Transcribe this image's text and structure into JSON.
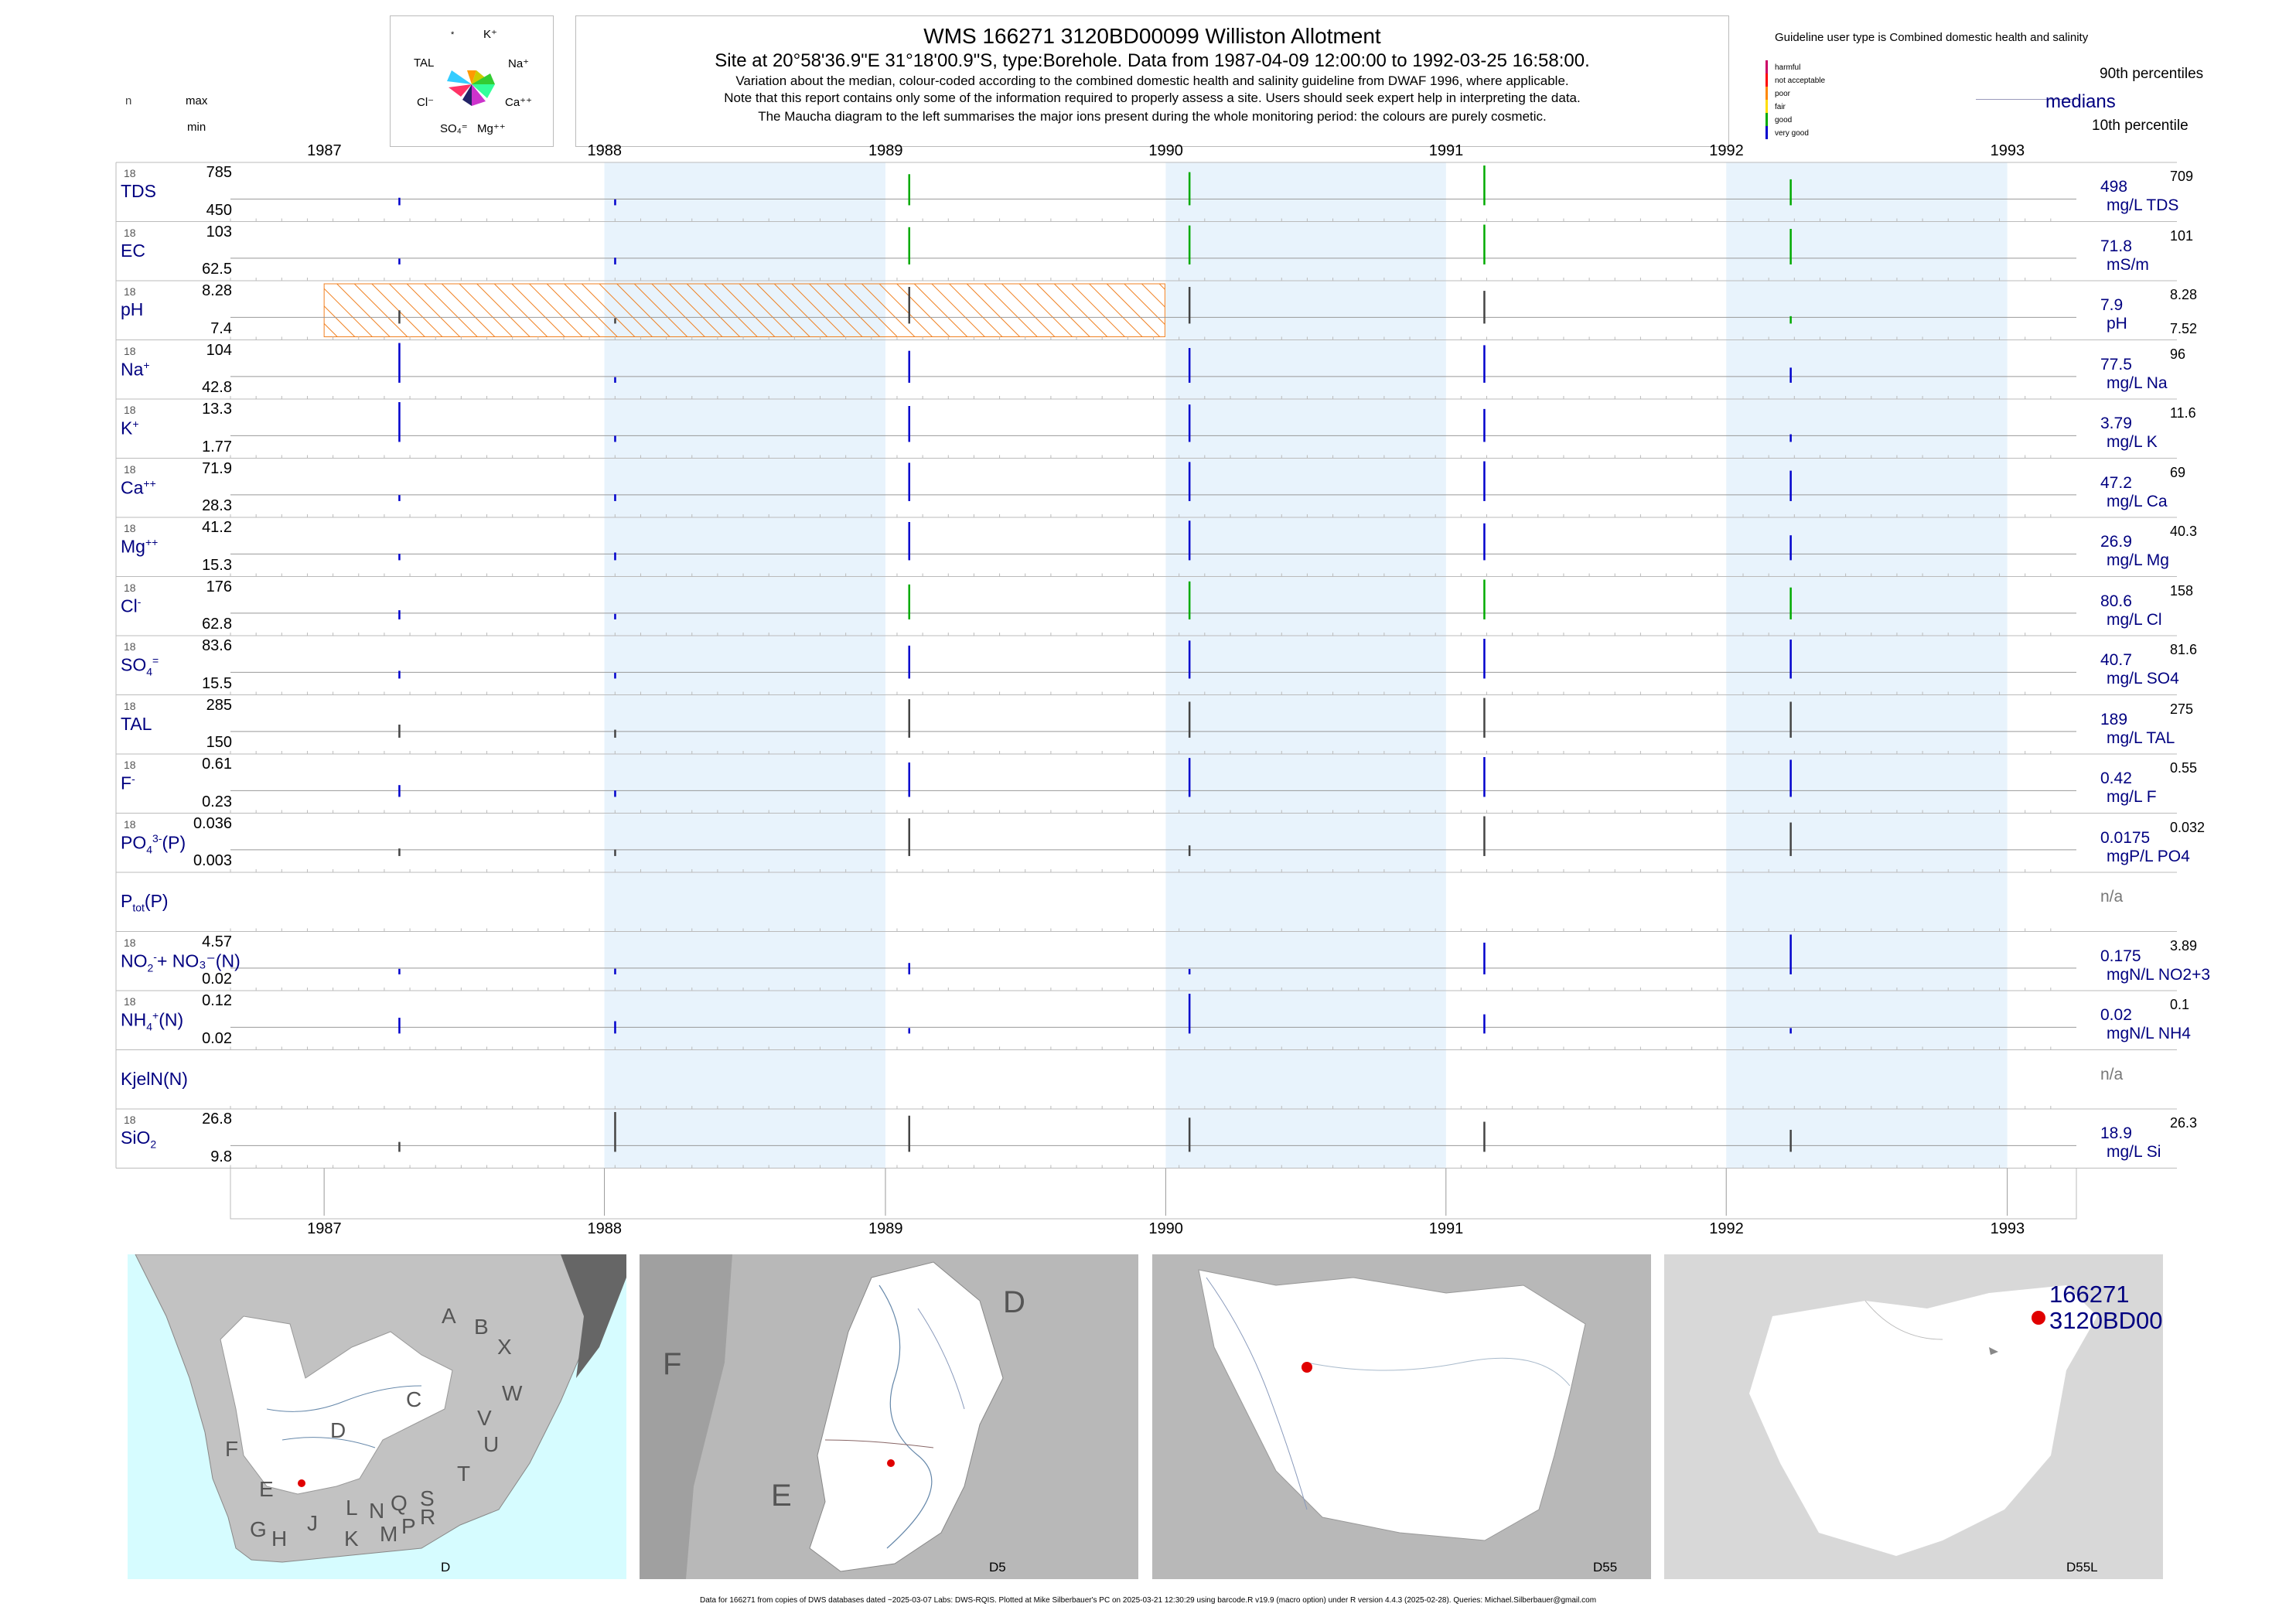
{
  "header": {
    "title": "WMS 166271 3120BD00099 Williston Allotment",
    "subtitle": "Site at 20°58'36.9\"E 31°18'00.9\"S, type:Borehole.  Data from 1987-04-09 12:00:00 to 1992-03-25 16:58:00.",
    "note1": "Variation about the median,  colour-coded according to the combined domestic health and salinity guideline from DWAF 1996, where applicable.",
    "note2": "Note that this report contains only some of the information required to properly assess a site. Users should seek expert help in interpreting the data.",
    "note3": "The Maucha diagram to the left summarises the major ions present during the whole monitoring period: the colours are purely cosmetic."
  },
  "maucha": {
    "labels": [
      "*",
      "K⁺",
      "TAL",
      "Na⁺",
      "Cl⁻",
      "Ca⁺⁺",
      "SO₄⁼",
      "Mg⁺⁺"
    ]
  },
  "left_header": {
    "n": "n",
    "max": "max",
    "min": "min"
  },
  "legend": {
    "title": "Guideline user type is Combined domestic health and salinity",
    "classes": [
      {
        "label": "harmful",
        "color": "#cc0066"
      },
      {
        "label": "not acceptable",
        "color": "#ff0000"
      },
      {
        "label": "poor",
        "color": "#ff8800"
      },
      {
        "label": "fair",
        "color": "#ffdd00"
      },
      {
        "label": "good",
        "color": "#00aa00"
      },
      {
        "label": "very good",
        "color": "#0000cc"
      }
    ],
    "p90": "90th percentiles",
    "medians": "medians",
    "p10": "10th percentile"
  },
  "footer": "Data for 166271 from copies of DWS databases dated ~2025-03-07 Labs: DWS-RQIS. Plotted at Mike Silberbauer's PC on 2025-03-21 12:30:29 using barcode.R v19.9 (macro option) under R version 4.4.3 (2025-02-28). Queries: Michael.Silberbauer@gmail.com",
  "chart_data": {
    "type": "barcode",
    "x_axis": {
      "ticks": [
        "1987",
        "1988",
        "1989",
        "1990",
        "1991",
        "1992",
        "1993"
      ],
      "range": [
        "1986-09-01",
        "1993-04-01"
      ]
    },
    "shaded_years": [
      "1988",
      "1990",
      "1992"
    ],
    "sample_dates": [
      "1987-04-09",
      "1988-01-15",
      "1989-02-01",
      "1990-02-01",
      "1991-02-20",
      "1992-03-25"
    ],
    "ph_hatched_period": [
      "1987",
      "1989-12-31"
    ],
    "rows": [
      {
        "name": "TDS",
        "sub": "",
        "sup": "",
        "n": "18",
        "max": "785",
        "min": "450",
        "median": "498",
        "p90": "709",
        "p10": "",
        "unit": "mg/L TDS",
        "values": [
          470,
          455,
          700,
          720,
          785,
          650
        ],
        "colors": [
          "#0000cc",
          "#0000cc",
          "#00aa00",
          "#00aa00",
          "#00aa00",
          "#00aa00"
        ]
      },
      {
        "name": "EC",
        "sub": "",
        "sup": "",
        "n": "18",
        "max": "103",
        "min": "62.5",
        "median": "71.8",
        "p90": "101",
        "p10": "",
        "unit": "mS/m",
        "values": [
          63,
          64,
          100,
          102,
          103,
          98
        ],
        "colors": [
          "#0000cc",
          "#0000cc",
          "#00aa00",
          "#00aa00",
          "#00aa00",
          "#00aa00"
        ]
      },
      {
        "name": "pH",
        "sub": "",
        "sup": "",
        "n": "18",
        "max": "8.28",
        "min": "7.4",
        "median": "7.9",
        "p90": "8.28",
        "p10": "7.52",
        "unit": "pH",
        "values": [
          7.6,
          7.4,
          8.2,
          8.2,
          8.1,
          7.45
        ],
        "colors": [
          "#444444",
          "#444444",
          "#444444",
          "#444444",
          "#444444",
          "#00aa00"
        ]
      },
      {
        "name": "Na",
        "sub": "",
        "sup": "+",
        "n": "18",
        "max": "104",
        "min": "42.8",
        "median": "77.5",
        "p90": "96",
        "p10": "",
        "unit": "mg/L Na",
        "values": [
          104,
          43,
          90,
          95,
          100,
          60
        ],
        "colors": [
          "#0000cc",
          "#0000cc",
          "#0000cc",
          "#0000cc",
          "#0000cc",
          "#0000cc"
        ]
      },
      {
        "name": "K",
        "sub": "",
        "sup": "+",
        "n": "18",
        "max": "13.3",
        "min": "1.77",
        "median": "3.79",
        "p90": "11.6",
        "p10": "",
        "unit": "mg/L K",
        "values": [
          13.3,
          2,
          12,
          12.5,
          11,
          2.5
        ],
        "colors": [
          "#0000cc",
          "#0000cc",
          "#0000cc",
          "#0000cc",
          "#0000cc",
          "#0000cc"
        ]
      },
      {
        "name": "Ca",
        "sub": "",
        "sup": "++",
        "n": "18",
        "max": "71.9",
        "min": "28.3",
        "median": "47.2",
        "p90": "69",
        "p10": "",
        "unit": "mg/L Ca",
        "values": [
          29,
          30,
          70,
          71,
          71.9,
          60
        ],
        "colors": [
          "#0000cc",
          "#0000cc",
          "#0000cc",
          "#0000cc",
          "#0000cc",
          "#0000cc"
        ]
      },
      {
        "name": "Mg",
        "sub": "",
        "sup": "++",
        "n": "18",
        "max": "41.2",
        "min": "15.3",
        "median": "26.9",
        "p90": "40.3",
        "p10": "",
        "unit": "mg/L Mg",
        "values": [
          16,
          17,
          40,
          41,
          39,
          30
        ],
        "colors": [
          "#0000cc",
          "#0000cc",
          "#0000cc",
          "#0000cc",
          "#0000cc",
          "#0000cc"
        ]
      },
      {
        "name": "Cl",
        "sub": "",
        "sup": "-",
        "n": "18",
        "max": "176",
        "min": "62.8",
        "median": "80.6",
        "p90": "158",
        "p10": "",
        "unit": "mg/L Cl",
        "values": [
          75,
          63,
          160,
          170,
          176,
          150
        ],
        "colors": [
          "#0000cc",
          "#0000cc",
          "#00aa00",
          "#00aa00",
          "#00aa00",
          "#00aa00"
        ]
      },
      {
        "name": "SO",
        "sub": "4",
        "sup": "=",
        "n": "18",
        "max": "83.6",
        "min": "15.5",
        "median": "40.7",
        "p90": "81.6",
        "p10": "",
        "unit": "mg/L SO4",
        "values": [
          20,
          16,
          70,
          80,
          83.6,
          82
        ],
        "colors": [
          "#0000cc",
          "#0000cc",
          "#0000cc",
          "#0000cc",
          "#0000cc",
          "#0000cc"
        ]
      },
      {
        "name": "TAL",
        "sub": "",
        "sup": "",
        "n": "18",
        "max": "285",
        "min": "150",
        "median": "189",
        "p90": "275",
        "p10": "",
        "unit": "mg/L TAL",
        "values": [
          180,
          160,
          280,
          270,
          285,
          270
        ],
        "colors": [
          "#444444",
          "#444444",
          "#444444",
          "#444444",
          "#444444",
          "#444444"
        ]
      },
      {
        "name": "F",
        "sub": "",
        "sup": "-",
        "n": "18",
        "max": "0.61",
        "min": "0.23",
        "median": "0.42",
        "p90": "0.55",
        "p10": "",
        "unit": "mg/L F",
        "values": [
          0.3,
          0.24,
          0.55,
          0.6,
          0.61,
          0.58
        ],
        "colors": [
          "#0000cc",
          "#0000cc",
          "#0000cc",
          "#0000cc",
          "#0000cc",
          "#0000cc"
        ]
      },
      {
        "name": "PO",
        "sub": "4",
        "sup": "3-",
        "tail": "(P)",
        "n": "18",
        "max": "0.036",
        "min": "0.003",
        "median": "0.0175",
        "p90": "0.032",
        "p10": "",
        "unit": "mgP/L PO4",
        "values": [
          0.005,
          0.004,
          0.034,
          0.008,
          0.036,
          0.03
        ],
        "colors": [
          "#444444",
          "#444444",
          "#444444",
          "#444444",
          "#444444",
          "#444444"
        ]
      },
      {
        "name": "P",
        "sub": "tot",
        "sup": "",
        "tail": "(P)",
        "n": "",
        "max": "",
        "min": "",
        "median": "n/a",
        "p90": "",
        "p10": "",
        "unit": "",
        "values": [],
        "colors": []
      },
      {
        "name": "NO",
        "sub": "2",
        "sup": "-",
        "tail": "+ NO₃⁻(N)",
        "n": "18",
        "max": "4.57",
        "min": "0.02",
        "median": "0.175",
        "p90": "3.89",
        "p10": "",
        "unit": "mgN/L NO2+3",
        "values": [
          0.03,
          0.05,
          0.8,
          0.02,
          3.5,
          4.57
        ],
        "colors": [
          "#0000cc",
          "#0000cc",
          "#0000cc",
          "#0000cc",
          "#0000cc",
          "#0000cc"
        ]
      },
      {
        "name": "NH",
        "sub": "4",
        "sup": "+",
        "tail": "(N)",
        "n": "18",
        "max": "0.12",
        "min": "0.02",
        "median": "0.02",
        "p90": "0.1",
        "p10": "",
        "unit": "mgN/L NH4",
        "values": [
          0.05,
          0.04,
          0.02,
          0.12,
          0.06,
          0.02
        ],
        "colors": [
          "#0000cc",
          "#0000cc",
          "#0000cc",
          "#0000cc",
          "#0000cc",
          "#0000cc"
        ]
      },
      {
        "name": "KjelN",
        "sub": "",
        "sup": "",
        "tail": "(N)",
        "n": "",
        "max": "",
        "min": "",
        "median": "n/a",
        "p90": "",
        "p10": "",
        "unit": "",
        "values": [],
        "colors": []
      },
      {
        "name": "SiO",
        "sub": "2",
        "sup": "",
        "n": "18",
        "max": "26.8",
        "min": "9.8",
        "median": "18.9",
        "p90": "26.3",
        "p10": "",
        "unit": "mg/L Si",
        "values": [
          12,
          26.8,
          25,
          24,
          22,
          18
        ],
        "colors": [
          "#444444",
          "#444444",
          "#444444",
          "#444444",
          "#444444",
          "#444444"
        ]
      }
    ]
  },
  "maps": [
    {
      "code": "D",
      "letters": [
        "A",
        "B",
        "X",
        "W",
        "C",
        "V",
        "U",
        "T",
        "D",
        "F",
        "E",
        "G",
        "H",
        "J",
        "K",
        "L",
        "M",
        "N",
        "P",
        "Q",
        "R",
        "S"
      ]
    },
    {
      "code": "D5",
      "letters": [
        "D",
        "F",
        "E"
      ]
    },
    {
      "code": "D55",
      "letters": []
    },
    {
      "code": "D55L",
      "letters": [],
      "site_label_1": "166271",
      "site_label_2": "3120BD00"
    }
  ]
}
